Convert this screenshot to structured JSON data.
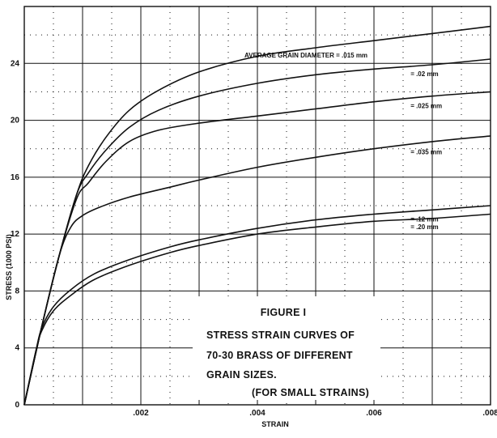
{
  "chart_data": {
    "type": "line",
    "title": "FIGURE I",
    "caption": [
      "STRESS STRAIN CURVES OF",
      "70-30 BRASS OF DIFFERENT",
      "GRAIN SIZES.",
      "(FOR SMALL STRAINS)"
    ],
    "xlabel": "STRAIN",
    "ylabel": "STRESS (1000 PSI)",
    "xlim": [
      0,
      0.008
    ],
    "ylim": [
      0,
      28
    ],
    "x_ticks": [
      {
        "value": 0.002,
        "label": ".002"
      },
      {
        "value": 0.004,
        "label": ".004"
      },
      {
        "value": 0.006,
        "label": ".006"
      },
      {
        "value": 0.008,
        "label": ".008"
      }
    ],
    "y_ticks": [
      {
        "value": 0,
        "label": "0"
      },
      {
        "value": 4,
        "label": "4"
      },
      {
        "value": 8,
        "label": "8"
      },
      {
        "value": 12,
        "label": "12"
      },
      {
        "value": 16,
        "label": "16"
      },
      {
        "value": 20,
        "label": "20"
      },
      {
        "value": 24,
        "label": "24"
      }
    ],
    "grid": true,
    "series": [
      {
        "name": "AVERAGE GRAIN DIAMETER = .015 mm",
        "points": [
          [
            0,
            0
          ],
          [
            0.0003,
            5.5
          ],
          [
            0.0006,
            10.5
          ],
          [
            0.0009,
            14.8
          ],
          [
            0.0011,
            16.8
          ],
          [
            0.0014,
            18.8
          ],
          [
            0.0018,
            20.7
          ],
          [
            0.0023,
            22.1
          ],
          [
            0.003,
            23.4
          ],
          [
            0.004,
            24.5
          ],
          [
            0.005,
            25.1
          ],
          [
            0.006,
            25.6
          ],
          [
            0.007,
            26.1
          ],
          [
            0.008,
            26.6
          ]
        ]
      },
      {
        "name": "= .02 mm",
        "points": [
          [
            0,
            0
          ],
          [
            0.0003,
            5.5
          ],
          [
            0.0006,
            10.5
          ],
          [
            0.0009,
            14.8
          ],
          [
            0.0011,
            16.3
          ],
          [
            0.0014,
            17.9
          ],
          [
            0.0018,
            19.5
          ],
          [
            0.0023,
            20.7
          ],
          [
            0.003,
            21.7
          ],
          [
            0.004,
            22.6
          ],
          [
            0.005,
            23.2
          ],
          [
            0.006,
            23.6
          ],
          [
            0.007,
            23.9
          ],
          [
            0.008,
            24.3
          ]
        ]
      },
      {
        "name": "= .025 mm",
        "points": [
          [
            0,
            0
          ],
          [
            0.0003,
            5.5
          ],
          [
            0.0006,
            10.5
          ],
          [
            0.0009,
            14.5
          ],
          [
            0.0011,
            15.6
          ],
          [
            0.0014,
            17.1
          ],
          [
            0.0018,
            18.5
          ],
          [
            0.0023,
            19.3
          ],
          [
            0.003,
            19.8
          ],
          [
            0.004,
            20.3
          ],
          [
            0.005,
            20.8
          ],
          [
            0.006,
            21.3
          ],
          [
            0.007,
            21.7
          ],
          [
            0.008,
            22.0
          ]
        ]
      },
      {
        "name": "= .035 mm",
        "points": [
          [
            0,
            0
          ],
          [
            0.0003,
            5.5
          ],
          [
            0.0006,
            10.5
          ],
          [
            0.0008,
            12.5
          ],
          [
            0.001,
            13.3
          ],
          [
            0.0013,
            13.9
          ],
          [
            0.0018,
            14.6
          ],
          [
            0.0025,
            15.3
          ],
          [
            0.003,
            15.8
          ],
          [
            0.004,
            16.7
          ],
          [
            0.005,
            17.4
          ],
          [
            0.006,
            18.0
          ],
          [
            0.007,
            18.5
          ],
          [
            0.008,
            18.9
          ]
        ]
      },
      {
        "name": "= .12 mm",
        "points": [
          [
            0,
            0
          ],
          [
            0.0002,
            3.8
          ],
          [
            0.0003,
            5.4
          ],
          [
            0.0005,
            6.9
          ],
          [
            0.0008,
            8.1
          ],
          [
            0.0012,
            9.2
          ],
          [
            0.0018,
            10.2
          ],
          [
            0.0025,
            11.1
          ],
          [
            0.003,
            11.6
          ],
          [
            0.004,
            12.4
          ],
          [
            0.005,
            13.0
          ],
          [
            0.006,
            13.4
          ],
          [
            0.007,
            13.7
          ],
          [
            0.008,
            14.0
          ]
        ]
      },
      {
        "name": "= .20 mm",
        "points": [
          [
            0,
            0
          ],
          [
            0.0002,
            3.8
          ],
          [
            0.0003,
            5.2
          ],
          [
            0.0005,
            6.6
          ],
          [
            0.0008,
            7.7
          ],
          [
            0.0012,
            8.8
          ],
          [
            0.0018,
            9.8
          ],
          [
            0.0025,
            10.7
          ],
          [
            0.003,
            11.2
          ],
          [
            0.004,
            12.0
          ],
          [
            0.005,
            12.5
          ],
          [
            0.006,
            12.9
          ],
          [
            0.007,
            13.1
          ],
          [
            0.008,
            13.4
          ]
        ]
      }
    ]
  }
}
